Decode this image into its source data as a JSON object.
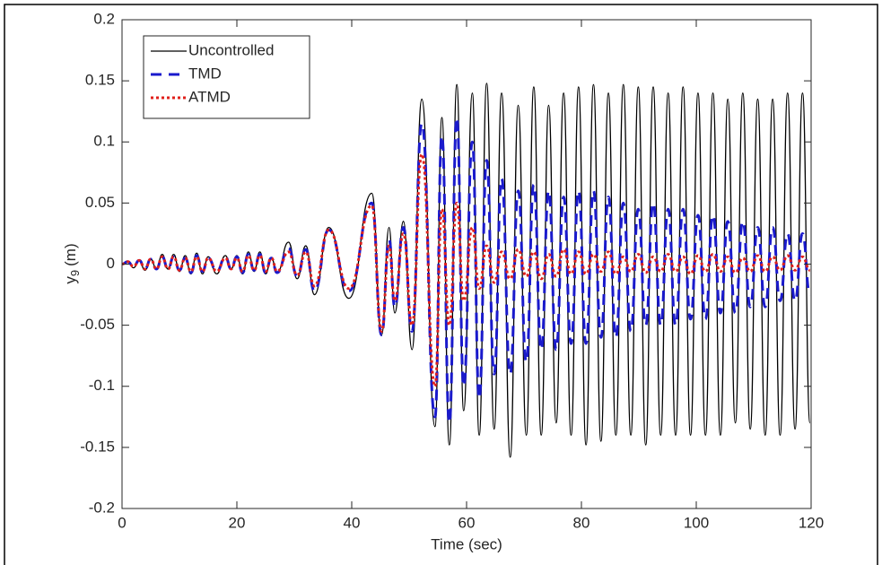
{
  "chart_data": {
    "type": "line",
    "xlabel": "Time (sec)",
    "ylabel": {
      "base": "y",
      "subscript": "9",
      "unit": "(m)"
    },
    "xlim": [
      0,
      120
    ],
    "xticks": [
      0,
      20,
      40,
      60,
      80,
      100,
      120
    ],
    "ylim": [
      -0.2,
      0.2
    ],
    "yticks": [
      -0.2,
      -0.15,
      -0.1,
      -0.05,
      0,
      0.05,
      0.1,
      0.15,
      0.2
    ],
    "legend": "upper left",
    "x": [
      0,
      1,
      2,
      3,
      4,
      5,
      6,
      7,
      8,
      9,
      10,
      11,
      12,
      13,
      14,
      15,
      16.5,
      18,
      19,
      20,
      21,
      22,
      23,
      24,
      25,
      26,
      27,
      29,
      30.5,
      32,
      33.5,
      36,
      39.5,
      43.5,
      45.2,
      46.5,
      47.5,
      49,
      50.5,
      52.2,
      54.5,
      55.7,
      57,
      58.3,
      59.5,
      61,
      62.2,
      63.5,
      64.8,
      66.1,
      67.6,
      69,
      70.4,
      71.7,
      73,
      74.3,
      75.6,
      76.9,
      78.2,
      79.5,
      80.8,
      82.1,
      83.4,
      84.7,
      86,
      87.3,
      88.6,
      89.9,
      91.2,
      92.5,
      93.8,
      95.1,
      96.4,
      97.7,
      99,
      100.3,
      101.6,
      102.9,
      104.2,
      105.5,
      106.8,
      108.1,
      109.4,
      110.7,
      112,
      113.3,
      114.6,
      115.9,
      117.2,
      118.5,
      119.8
    ],
    "series": [
      {
        "name": "Uncontrolled",
        "color": "#000000",
        "line_style": "solid",
        "values": [
          0,
          0.002,
          -0.003,
          0.003,
          -0.005,
          0.004,
          -0.004,
          0.008,
          -0.004,
          0.008,
          -0.006,
          0.007,
          -0.008,
          0.009,
          -0.008,
          0.006,
          -0.008,
          0.007,
          -0.004,
          0.007,
          -0.008,
          0.01,
          -0.006,
          0.01,
          -0.008,
          0.005,
          -0.007,
          0.018,
          -0.012,
          0.015,
          -0.025,
          0.03,
          -0.028,
          0.058,
          -0.058,
          0.03,
          -0.04,
          0.035,
          -0.07,
          0.135,
          -0.133,
          0.12,
          -0.148,
          0.147,
          -0.12,
          0.14,
          -0.14,
          0.148,
          -0.135,
          0.14,
          -0.158,
          0.13,
          -0.14,
          0.145,
          -0.14,
          0.13,
          -0.13,
          0.14,
          -0.14,
          0.145,
          -0.148,
          0.147,
          -0.145,
          0.14,
          -0.14,
          0.147,
          -0.14,
          0.145,
          -0.148,
          0.145,
          -0.14,
          0.14,
          -0.14,
          0.145,
          -0.14,
          0.14,
          -0.14,
          0.14,
          -0.14,
          0.135,
          -0.13,
          0.14,
          -0.135,
          0.135,
          -0.14,
          0.135,
          -0.14,
          0.14,
          -0.135,
          0.14,
          -0.13
        ]
      },
      {
        "name": "TMD",
        "color": "#1a1acc",
        "line_style": "dashed",
        "values": [
          0,
          0.002,
          -0.002,
          0.003,
          -0.004,
          0.004,
          -0.004,
          0.006,
          -0.004,
          0.006,
          -0.005,
          0.005,
          -0.007,
          0.007,
          -0.006,
          0.005,
          -0.006,
          0.006,
          -0.004,
          0.006,
          -0.007,
          0.008,
          -0.005,
          0.008,
          -0.007,
          0.005,
          -0.007,
          0.013,
          -0.01,
          0.012,
          -0.022,
          0.028,
          -0.022,
          0.05,
          -0.058,
          0.02,
          -0.035,
          0.03,
          -0.055,
          0.115,
          -0.125,
          0.105,
          -0.13,
          0.12,
          -0.1,
          0.1,
          -0.11,
          0.085,
          -0.09,
          0.07,
          -0.09,
          0.06,
          -0.08,
          0.065,
          -0.07,
          0.06,
          -0.07,
          0.055,
          -0.065,
          0.06,
          -0.065,
          0.06,
          -0.06,
          0.055,
          -0.06,
          0.05,
          -0.055,
          0.045,
          -0.05,
          0.05,
          -0.05,
          0.045,
          -0.05,
          0.045,
          -0.045,
          0.04,
          -0.045,
          0.04,
          -0.04,
          0.035,
          -0.04,
          0.035,
          -0.035,
          0.03,
          -0.035,
          0.03,
          -0.03,
          0.025,
          -0.03,
          0.025,
          -0.025
        ]
      },
      {
        "name": "ATMD",
        "color": "#e0201b",
        "line_style": "dotted",
        "values": [
          0,
          0.002,
          -0.002,
          0.003,
          -0.004,
          0.004,
          -0.004,
          0.006,
          -0.004,
          0.006,
          -0.005,
          0.005,
          -0.006,
          0.006,
          -0.006,
          0.005,
          -0.006,
          0.005,
          -0.004,
          0.005,
          -0.006,
          0.007,
          -0.005,
          0.007,
          -0.006,
          0.005,
          -0.006,
          0.01,
          -0.009,
          0.01,
          -0.018,
          0.028,
          -0.02,
          0.048,
          -0.055,
          0.015,
          -0.03,
          0.025,
          -0.05,
          0.09,
          -0.1,
          0.045,
          -0.05,
          0.05,
          -0.03,
          0.03,
          -0.02,
          0.015,
          -0.015,
          0.01,
          -0.012,
          0.012,
          -0.01,
          0.01,
          -0.012,
          0.008,
          -0.01,
          0.012,
          -0.008,
          0.01,
          -0.008,
          0.008,
          -0.006,
          0.01,
          -0.008,
          0.006,
          -0.006,
          0.008,
          -0.007,
          0.006,
          -0.006,
          0.008,
          -0.006,
          0.006,
          -0.008,
          0.007,
          -0.006,
          0.008,
          -0.006,
          0.006,
          -0.007,
          0.005,
          -0.006,
          0.007,
          -0.006,
          0.006,
          -0.005,
          0.007,
          -0.005,
          0.006,
          -0.005
        ]
      }
    ]
  }
}
